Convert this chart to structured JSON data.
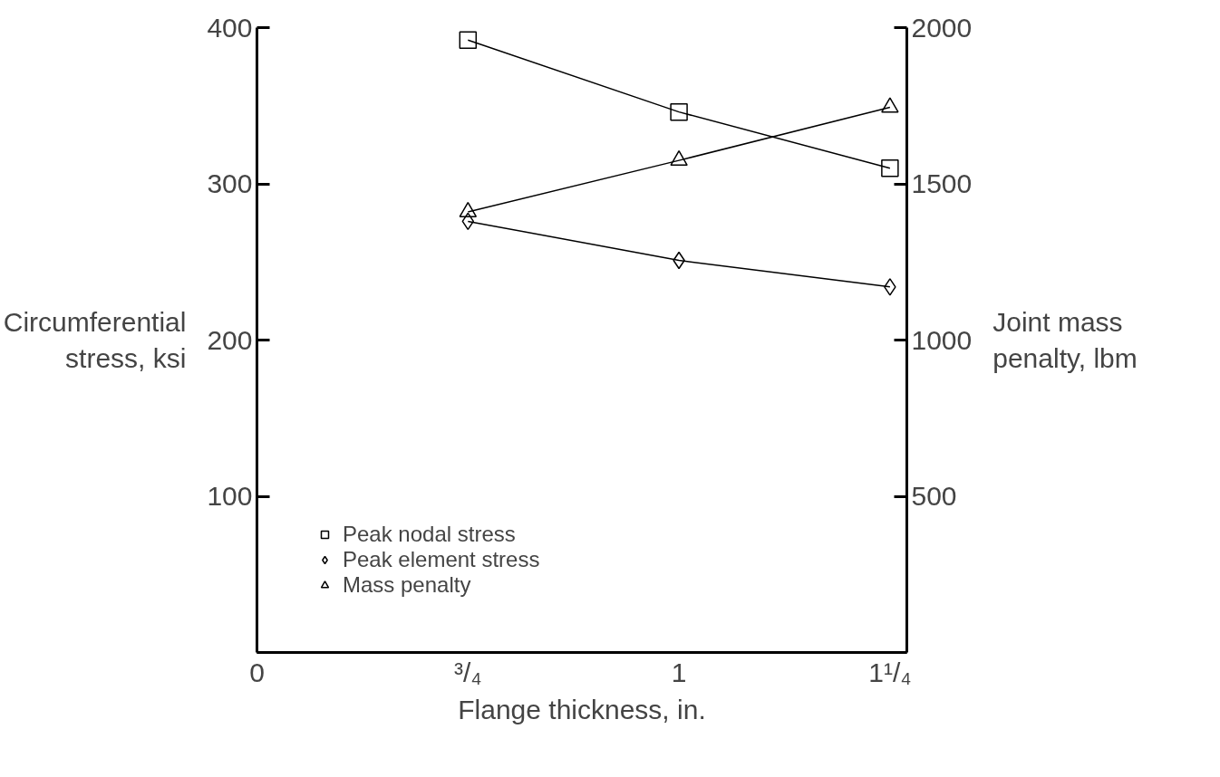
{
  "chart_data": {
    "type": "line",
    "xlabel": "Flange thickness, in.",
    "ylabel": "Circumferential\nstress, ksi",
    "y2label": "Joint mass\npenalty, lbm",
    "x": [
      0.75,
      1,
      1.25
    ],
    "xlim": [
      0.5,
      1.27
    ],
    "xticks": [
      {
        "value": 0.5,
        "label": "0"
      },
      {
        "value": 0.75,
        "label": "³/₄"
      },
      {
        "value": 1,
        "label": "1"
      },
      {
        "value": 1.25,
        "label": "1¹/₄"
      }
    ],
    "ylim": [
      0,
      400
    ],
    "yticks": [
      {
        "value": 0,
        "label": null
      },
      100,
      200,
      300,
      400
    ],
    "y2lim": [
      0,
      2000
    ],
    "y2ticks": [
      {
        "value": 0,
        "label": null
      },
      500,
      1000,
      1500,
      2000
    ],
    "series": [
      {
        "name": "Peak nodal stress",
        "color": "#000000",
        "marker": "square",
        "values": [
          392,
          346,
          310
        ]
      },
      {
        "name": "Peak element stress",
        "color": "#000000",
        "marker": "diamond",
        "values": [
          276,
          251,
          234
        ]
      },
      {
        "name": "Mass penalty",
        "color": "#000000",
        "marker": "triangle",
        "axis": "y2",
        "values": [
          1410,
          1575,
          1745
        ]
      }
    ],
    "grid": false,
    "legend": "bottom",
    "line_style": "solid"
  }
}
